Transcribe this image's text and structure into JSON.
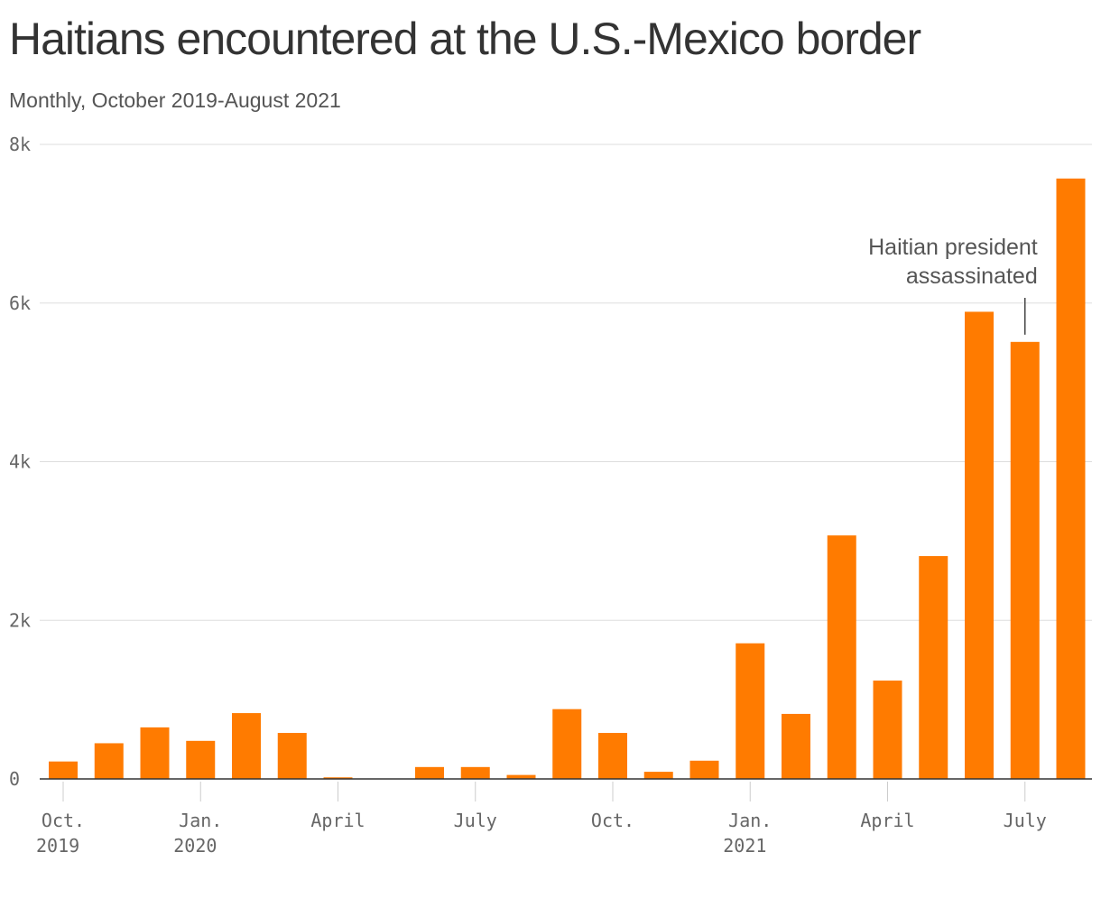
{
  "title": "Haitians encountered at the U.S.-Mexico border",
  "subtitle": "Monthly, October 2019-August 2021",
  "colors": {
    "bar": "#ff7b00",
    "grid": "#dddddd",
    "axis": "#333333",
    "text": "#666666"
  },
  "chart_data": {
    "type": "bar",
    "title": "Haitians encountered at the U.S.-Mexico border",
    "subtitle": "Monthly, October 2019-August 2021",
    "xlabel": "",
    "ylabel": "",
    "ylim": [
      0,
      8000
    ],
    "yticks": [
      {
        "value": 0,
        "label": "0"
      },
      {
        "value": 2000,
        "label": "2k"
      },
      {
        "value": 4000,
        "label": "4k"
      },
      {
        "value": 6000,
        "label": "6k"
      },
      {
        "value": 8000,
        "label": "8k"
      }
    ],
    "grid": true,
    "categories": [
      "2019-10",
      "2019-11",
      "2019-12",
      "2020-01",
      "2020-02",
      "2020-03",
      "2020-04",
      "2020-05",
      "2020-06",
      "2020-07",
      "2020-08",
      "2020-09",
      "2020-10",
      "2020-11",
      "2020-12",
      "2021-01",
      "2021-02",
      "2021-03",
      "2021-04",
      "2021-05",
      "2021-06",
      "2021-07",
      "2021-08"
    ],
    "values": [
      220,
      450,
      650,
      480,
      830,
      580,
      20,
      0,
      150,
      150,
      50,
      880,
      580,
      90,
      230,
      1710,
      820,
      3070,
      1240,
      2810,
      5890,
      5510,
      7570
    ],
    "xticks": [
      {
        "month": "2019-10",
        "lines": [
          "Oct.",
          "2019"
        ]
      },
      {
        "month": "2020-01",
        "lines": [
          "Jan.",
          "2020"
        ]
      },
      {
        "month": "2020-04",
        "lines": [
          "April"
        ]
      },
      {
        "month": "2020-07",
        "lines": [
          "July"
        ]
      },
      {
        "month": "2020-10",
        "lines": [
          "Oct."
        ]
      },
      {
        "month": "2021-01",
        "lines": [
          "Jan.",
          "2021"
        ]
      },
      {
        "month": "2021-04",
        "lines": [
          "April"
        ]
      },
      {
        "month": "2021-07",
        "lines": [
          "July"
        ]
      }
    ],
    "annotations": [
      {
        "month": "2021-07",
        "lines": [
          "Haitian president",
          "assassinated"
        ]
      }
    ]
  }
}
